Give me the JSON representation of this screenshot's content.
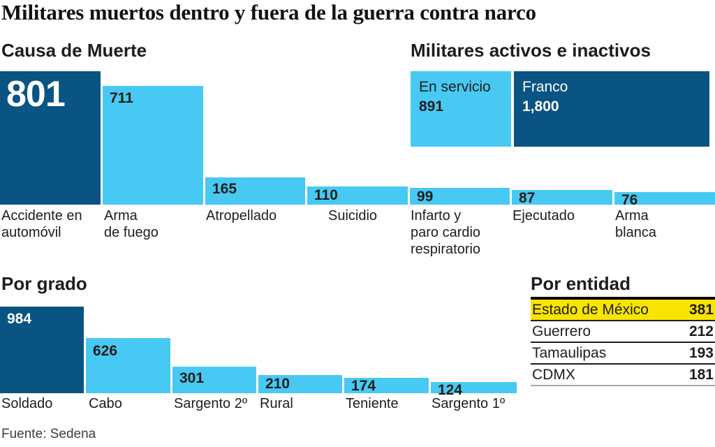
{
  "title": "Militares muertos dentro y fuera de la guerra contra narco",
  "source": "Fuente: Sedena",
  "colors": {
    "dark_blue": "#0a5484",
    "light_blue": "#47c9f3",
    "yellow": "#f8e400",
    "ink": "#1d1d1b"
  },
  "chart_data": [
    {
      "id": "causa",
      "type": "bar",
      "title": "Causa de Muerte",
      "categories": [
        "Accidente en\nautomóvil",
        "Arma\nde fuego",
        "Atropellado",
        "Suicidio",
        "Infarto y\nparo cardio\nrespiratorio",
        "Ejecutado",
        "Arma\nblanca"
      ],
      "values": [
        801,
        711,
        165,
        110,
        99,
        87,
        76
      ],
      "ylim": [
        0,
        801
      ],
      "emphasized_index": 0,
      "value_labels": "inside-top-left",
      "grid": false,
      "legend": "none"
    },
    {
      "id": "activos",
      "type": "bar",
      "title": "Militares activos e inactivos",
      "orientation": "horizontal-proportional",
      "categories": [
        "En servicio",
        "Franco"
      ],
      "values": [
        891,
        1800
      ],
      "display_values": [
        "891",
        "1,800"
      ],
      "emphasized_index": 1,
      "grid": false,
      "legend": "none"
    },
    {
      "id": "grado",
      "type": "bar",
      "title": "Por grado",
      "categories": [
        "Soldado",
        "Cabo",
        "Sargento 2º",
        "Rural",
        "Teniente",
        "Sargento 1º"
      ],
      "values": [
        984,
        626,
        301,
        210,
        174,
        124
      ],
      "ylim": [
        0,
        984
      ],
      "emphasized_index": 0,
      "value_labels": "inside-top-left",
      "grid": false,
      "legend": "none"
    },
    {
      "id": "entidad",
      "type": "table",
      "title": "Por entidad",
      "rows": [
        {
          "label": "Estado de México",
          "value": 381,
          "highlighted": true
        },
        {
          "label": "Guerrero",
          "value": 212,
          "highlighted": false
        },
        {
          "label": "Tamaulipas",
          "value": 193,
          "highlighted": false
        },
        {
          "label": "CDMX",
          "value": 181,
          "highlighted": false
        }
      ]
    }
  ]
}
